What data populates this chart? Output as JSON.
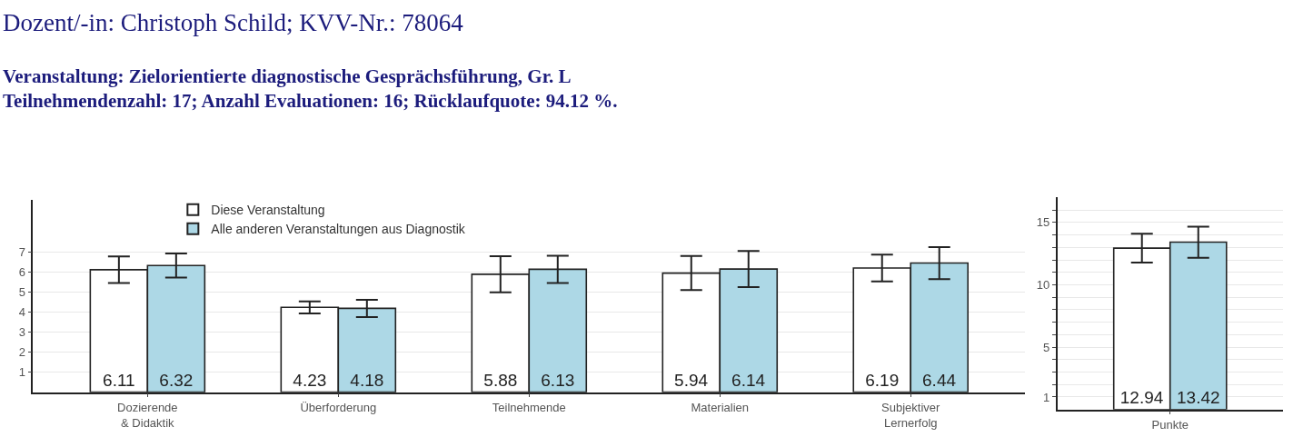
{
  "chart_data": [
    {
      "type": "bar",
      "title": "Dozent/-in: Christoph Schild; KVV-Nr.: 78064",
      "subtitle": "Veranstaltung: Zielorientierte diagnostische Gesprächsführung, Gr. L\nTeilnehmendenzahl: 17; Anzahl Evaluationen: 16; Rücklaufquote: 94.12 %.",
      "categories": [
        "Dozierende\n& Didaktik",
        "Überforderung",
        "Teilnehmende",
        "Materialien",
        "Subjektiver\nLernerfolg"
      ],
      "series": [
        {
          "name": "Diese Veranstaltung",
          "color": "#ffffff",
          "values": [
            6.11,
            4.23,
            5.88,
            5.94,
            6.19
          ],
          "errors": [
            0.66,
            0.3,
            0.9,
            0.85,
            0.67
          ]
        },
        {
          "name": "Alle anderen Veranstaltungen aus Diagnostik",
          "color": "#add8e6",
          "values": [
            6.32,
            4.18,
            6.13,
            6.14,
            6.44
          ],
          "errors": [
            0.6,
            0.43,
            0.68,
            0.9,
            0.8
          ]
        }
      ],
      "ylim": [
        0,
        9.6
      ],
      "yticks": [
        1,
        2,
        3,
        4,
        5,
        6,
        7
      ],
      "grid": "y",
      "legend": "top left",
      "data_labels": true
    },
    {
      "type": "bar",
      "categories": [
        "Punkte"
      ],
      "series": [
        {
          "color": "#ffffff",
          "values": [
            12.94
          ],
          "errors": [
            1.15
          ]
        },
        {
          "color": "#add8e6",
          "values": [
            13.42
          ],
          "errors": [
            1.25
          ]
        }
      ],
      "ylim": [
        0,
        17
      ],
      "yticks": [
        1,
        {
          "value": 2,
          "label": null
        },
        {
          "value": 3,
          "label": null
        },
        {
          "value": 4,
          "label": null
        },
        5,
        {
          "value": 6,
          "label": null
        },
        {
          "value": 7,
          "label": null
        },
        {
          "value": 8,
          "label": null
        },
        {
          "value": 9,
          "label": null
        },
        10,
        {
          "value": 11,
          "label": null
        },
        {
          "value": 12,
          "label": null
        },
        {
          "value": 13,
          "label": null
        },
        {
          "value": 14,
          "label": null
        },
        15,
        {
          "value": 16,
          "label": null
        }
      ],
      "grid": "y",
      "data_labels": true
    }
  ]
}
